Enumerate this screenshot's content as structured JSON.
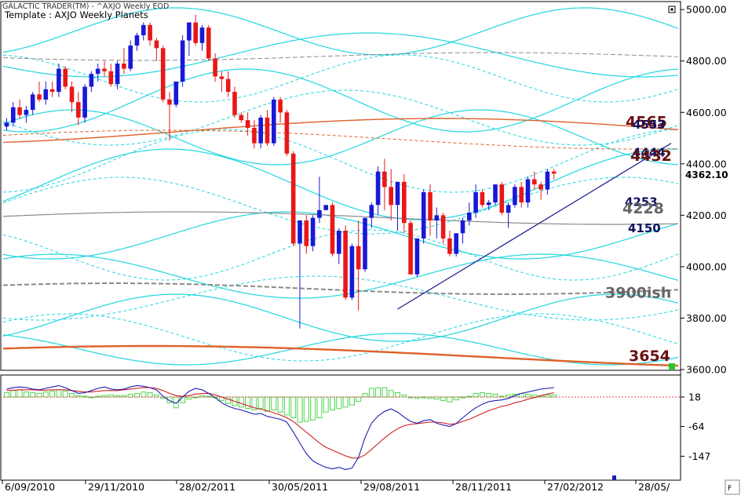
{
  "header": {
    "title": "GALACTIC TRADER(TM) - ^AXJO Weekly EOD",
    "template": "Template : AXJO Weekly Planets"
  },
  "colors": {
    "up": "#1818d8",
    "down": "#e81818",
    "planet_line": "#22d6e0",
    "orange_line": "#e0602a",
    "gray_line": "#8a8a8a",
    "macd_hist": "#4ed64e",
    "macd_line": "#1e1eb4",
    "signal_line": "#d02020",
    "trendline": "#2a2a9a",
    "grid": "#000000"
  },
  "chart_data": [
    {
      "type": "candlestick",
      "ylabel": "",
      "ylim": [
        3600,
        5050
      ],
      "y_ticks": [
        "5000.00",
        "4800.00",
        "4600.00",
        "4400.00",
        "4200.00",
        "4000.00",
        "3800.00",
        "3600.00"
      ],
      "y_tick_values": [
        5000,
        4800,
        4600,
        4400,
        4200,
        4000,
        3800,
        3600
      ],
      "x_ticks": [
        "6/09/2010",
        "29/11/2010",
        "28/02/2011",
        "30/05/2011",
        "29/08/2011",
        "28/11/2011",
        "27/02/2012",
        "28/05/"
      ],
      "last_price": "4362.10",
      "bars": [
        [
          4545,
          4578,
          4530,
          4560
        ],
        [
          4560,
          4640,
          4545,
          4620
        ],
        [
          4620,
          4650,
          4575,
          4590
        ],
        [
          4590,
          4625,
          4560,
          4610
        ],
        [
          4610,
          4680,
          4590,
          4670
        ],
        [
          4670,
          4720,
          4640,
          4650
        ],
        [
          4650,
          4720,
          4630,
          4690
        ],
        [
          4690,
          4720,
          4660,
          4680
        ],
        [
          4680,
          4790,
          4660,
          4770
        ],
        [
          4770,
          4780,
          4690,
          4700
        ],
        [
          4700,
          4720,
          4600,
          4640
        ],
        [
          4640,
          4680,
          4550,
          4580
        ],
        [
          4580,
          4710,
          4560,
          4700
        ],
        [
          4700,
          4760,
          4680,
          4750
        ],
        [
          4750,
          4790,
          4720,
          4770
        ],
        [
          4770,
          4800,
          4740,
          4760
        ],
        [
          4760,
          4790,
          4700,
          4710
        ],
        [
          4710,
          4800,
          4690,
          4790
        ],
        [
          4790,
          4850,
          4750,
          4770
        ],
        [
          4770,
          4880,
          4760,
          4860
        ],
        [
          4860,
          4910,
          4840,
          4900
        ],
        [
          4900,
          4950,
          4880,
          4940
        ],
        [
          4940,
          4950,
          4860,
          4880
        ],
        [
          4880,
          4890,
          4800,
          4850
        ],
        [
          4850,
          4860,
          4640,
          4650
        ],
        [
          4650,
          4680,
          4490,
          4630
        ],
        [
          4630,
          4720,
          4620,
          4720
        ],
        [
          4720,
          4900,
          4700,
          4880
        ],
        [
          4880,
          4950,
          4820,
          4950
        ],
        [
          4950,
          4980,
          4860,
          4870
        ],
        [
          4870,
          4940,
          4840,
          4930
        ],
        [
          4930,
          4940,
          4800,
          4810
        ],
        [
          4810,
          4830,
          4720,
          4740
        ],
        [
          4740,
          4760,
          4680,
          4730
        ],
        [
          4730,
          4760,
          4660,
          4680
        ],
        [
          4680,
          4700,
          4580,
          4590
        ],
        [
          4590,
          4600,
          4560,
          4570
        ],
        [
          4570,
          4600,
          4510,
          4540
        ],
        [
          4540,
          4570,
          4460,
          4480
        ],
        [
          4480,
          4590,
          4460,
          4580
        ],
        [
          4580,
          4610,
          4470,
          4480
        ],
        [
          4480,
          4660,
          4470,
          4650
        ],
        [
          4650,
          4660,
          4560,
          4600
        ],
        [
          4600,
          4610,
          4430,
          4440
        ],
        [
          4440,
          4450,
          4080,
          4090
        ],
        [
          4090,
          4180,
          3760,
          4180
        ],
        [
          4180,
          4200,
          4050,
          4080
        ],
        [
          4080,
          4200,
          4060,
          4190
        ],
        [
          4190,
          4350,
          4170,
          4220
        ],
        [
          4220,
          4240,
          4220,
          4240
        ],
        [
          4240,
          4250,
          4040,
          4050
        ],
        [
          4050,
          4150,
          4010,
          4140
        ],
        [
          4140,
          4160,
          3870,
          3880
        ],
        [
          3880,
          4090,
          3870,
          4080
        ],
        [
          4080,
          4180,
          3830,
          3990
        ],
        [
          3990,
          4190,
          3980,
          4190
        ],
        [
          4190,
          4250,
          4150,
          4240
        ],
        [
          4240,
          4390,
          4200,
          4370
        ],
        [
          4370,
          4420,
          4220,
          4310
        ],
        [
          4310,
          4380,
          4180,
          4240
        ],
        [
          4240,
          4330,
          4140,
          4330
        ],
        [
          4330,
          4360,
          4130,
          4170
        ],
        [
          4170,
          4180,
          3970,
          3970
        ],
        [
          3970,
          4110,
          3960,
          4110
        ],
        [
          4110,
          4300,
          4090,
          4290
        ],
        [
          4290,
          4320,
          4120,
          4180
        ],
        [
          4180,
          4230,
          4110,
          4200
        ],
        [
          4200,
          4210,
          4090,
          4110
        ],
        [
          4110,
          4140,
          4040,
          4050
        ],
        [
          4050,
          4130,
          4040,
          4130
        ],
        [
          4130,
          4190,
          4090,
          4180
        ],
        [
          4180,
          4250,
          4160,
          4210
        ],
        [
          4210,
          4320,
          4190,
          4290
        ],
        [
          4290,
          4300,
          4230,
          4240
        ],
        [
          4240,
          4260,
          4220,
          4250
        ],
        [
          4250,
          4320,
          4240,
          4320
        ],
        [
          4320,
          4330,
          4200,
          4210
        ],
        [
          4210,
          4250,
          4150,
          4240
        ],
        [
          4240,
          4320,
          4230,
          4310
        ],
        [
          4310,
          4330,
          4230,
          4250
        ],
        [
          4250,
          4350,
          4230,
          4340
        ],
        [
          4340,
          4370,
          4300,
          4320
        ],
        [
          4320,
          4330,
          4260,
          4300
        ],
        [
          4300,
          4380,
          4280,
          4370
        ],
        [
          4370,
          4380,
          4340,
          4362
        ]
      ],
      "trendline": {
        "from": [
          60,
          3835
        ],
        "to": [
          102,
          4480
        ]
      },
      "annotations": [
        {
          "text": "4565",
          "value": 4565,
          "color": "#6a1010"
        },
        {
          "text": "4553",
          "value": 4553,
          "color": "#101060"
        },
        {
          "text": "4444",
          "value": 4444,
          "color": "#101060"
        },
        {
          "text": "4432",
          "value": 4432,
          "color": "#6a1010"
        },
        {
          "text": "4253",
          "value": 4253,
          "color": "#101060"
        },
        {
          "text": "4228",
          "value": 4228,
          "color": "#666666"
        },
        {
          "text": "4150",
          "value": 4150,
          "color": "#101060"
        },
        {
          "text": "3900ish",
          "value": 3900,
          "color": "#666666"
        },
        {
          "text": "3654",
          "value": 3654,
          "color": "#6a1010"
        }
      ]
    },
    {
      "type": "bar",
      "ylabel": "",
      "y_ticks": [
        "18",
        "-64",
        "-147"
      ],
      "y_tick_values": [
        18,
        -64,
        -147
      ],
      "ylim": [
        -195,
        52
      ],
      "reference_line": 18,
      "histogram": [
        30,
        36,
        38,
        32,
        30,
        28,
        32,
        34,
        38,
        34,
        28,
        22,
        20,
        18,
        20,
        22,
        24,
        22,
        22,
        26,
        28,
        32,
        30,
        24,
        14,
        2,
        -12,
        2,
        12,
        18,
        22,
        20,
        16,
        8,
        0,
        -6,
        -10,
        -14,
        -18,
        -14,
        -22,
        -18,
        -24,
        -32,
        -40,
        -52,
        -50,
        -46,
        -40,
        -24,
        -18,
        -14,
        -10,
        -4,
        6,
        28,
        42,
        44,
        44,
        36,
        30,
        24,
        18,
        14,
        16,
        14,
        12,
        8,
        4,
        10,
        16,
        20,
        28,
        30,
        28,
        26,
        20,
        24,
        26,
        28,
        26,
        24,
        22,
        24,
        24
      ],
      "macd": [
        40,
        44,
        46,
        44,
        40,
        38,
        42,
        46,
        50,
        44,
        36,
        28,
        30,
        36,
        42,
        46,
        40,
        38,
        40,
        46,
        50,
        48,
        44,
        38,
        20,
        8,
        0,
        18,
        34,
        42,
        38,
        28,
        16,
        2,
        -8,
        -14,
        -18,
        -24,
        -30,
        -28,
        -36,
        -40,
        -44,
        -52,
        -80,
        -110,
        -140,
        -160,
        -170,
        -178,
        -182,
        -178,
        -184,
        -180,
        -150,
        -95,
        -55,
        -35,
        -22,
        -15,
        -24,
        -38,
        -50,
        -55,
        -48,
        -45,
        -55,
        -60,
        -64,
        -56,
        -40,
        -25,
        -12,
        -2,
        5,
        8,
        10,
        14,
        22,
        28,
        32,
        36,
        40,
        42,
        44
      ],
      "signal": [
        36,
        37,
        38,
        38,
        38,
        37,
        37,
        38,
        38,
        38,
        36,
        34,
        32,
        32,
        34,
        36,
        36,
        36,
        38,
        40,
        42,
        44,
        44,
        42,
        36,
        28,
        22,
        20,
        22,
        26,
        28,
        28,
        24,
        18,
        12,
        6,
        0,
        -6,
        -12,
        -16,
        -20,
        -26,
        -32,
        -40,
        -50,
        -65,
        -80,
        -95,
        -110,
        -122,
        -130,
        -138,
        -146,
        -152,
        -152,
        -143,
        -128,
        -112,
        -96,
        -82,
        -70,
        -62,
        -58,
        -56,
        -54,
        -52,
        -52,
        -54,
        -58,
        -56,
        -50,
        -44,
        -36,
        -28,
        -20,
        -14,
        -8,
        -4,
        2,
        6,
        12,
        16,
        22,
        26,
        30
      ]
    }
  ]
}
